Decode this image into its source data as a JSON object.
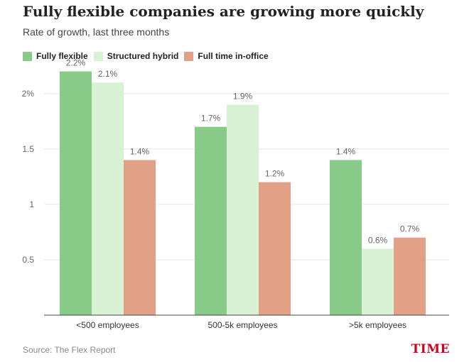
{
  "colors": {
    "brand": "#d0021b",
    "grid": "#e5e5e5",
    "axis": "#444444",
    "tick_text": "#666666",
    "label_text": "#666666"
  },
  "header": {
    "title": "Fully flexible companies are growing more quickly",
    "subtitle": "Rate of growth, last three months"
  },
  "footer": {
    "source": "Source: The Flex Report",
    "brand": "TIME"
  },
  "chart_data": {
    "type": "bar",
    "title": "Fully flexible companies are growing more quickly",
    "subtitle": "Rate of growth, last three months",
    "categories": [
      "<500 employees",
      "500-5k employees",
      ">5k employees"
    ],
    "series": [
      {
        "name": "Fully flexible",
        "color": "#88cb88",
        "values": [
          2.2,
          1.7,
          1.4
        ],
        "labels": [
          "2.2%",
          "1.7%",
          "1.4%"
        ]
      },
      {
        "name": "Structured hybrid",
        "color": "#d9f1d4",
        "values": [
          2.1,
          1.9,
          0.6
        ],
        "labels": [
          "2.1%",
          "1.9%",
          "0.6%"
        ]
      },
      {
        "name": "Full time in-office",
        "color": "#e2a087",
        "values": [
          1.4,
          1.2,
          0.7
        ],
        "labels": [
          "1.4%",
          "1.2%",
          "0.7%"
        ]
      }
    ],
    "ylim": [
      0,
      2.3
    ],
    "yticks": [
      0.5,
      1,
      1.5,
      2
    ],
    "ytick_labels": [
      "0.5",
      "1",
      "1.5",
      "2%"
    ],
    "xlabel": "",
    "ylabel": "",
    "grid": true,
    "legend_position": "top-left"
  }
}
